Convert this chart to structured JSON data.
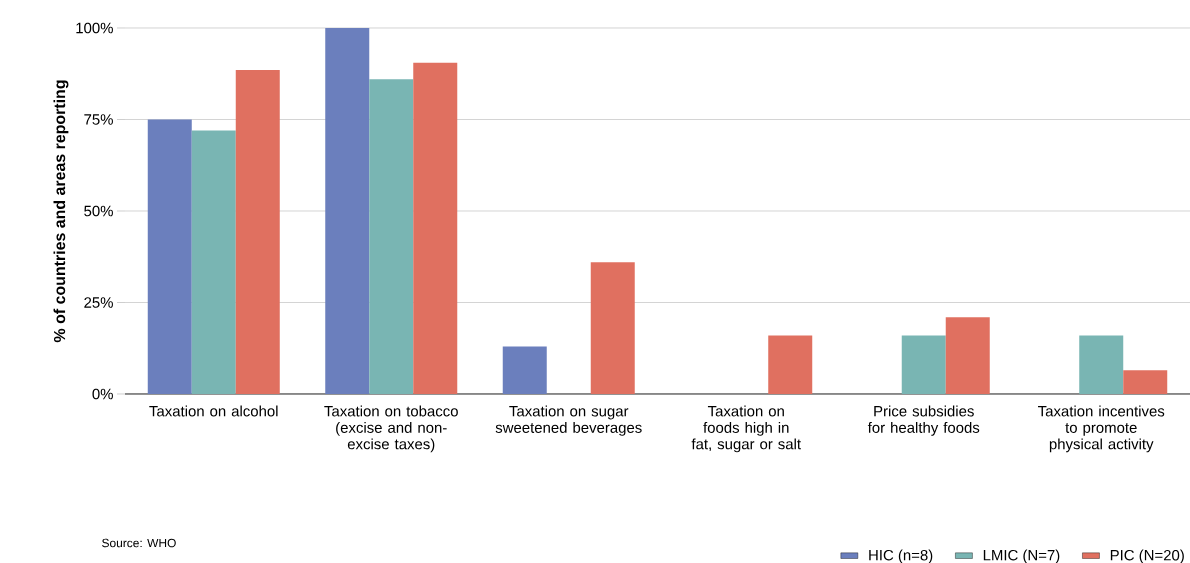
{
  "chart_data": {
    "type": "bar",
    "ylabel": "% of countries and areas reporting",
    "categories": [
      "Taxation on alcohol",
      "Taxation on tobacco (excise and non-excise taxes)",
      "Taxation on sugar sweetened beverages",
      "Taxation on foods high in fat, sugar or salt",
      "Price subsidies for healthy foods",
      "Taxation incentives to promote physical activity"
    ],
    "series": [
      {
        "name": "HIC (n=8)",
        "color": "#6b7fbd",
        "values": [
          75,
          100,
          13,
          0,
          0,
          0
        ]
      },
      {
        "name": "LMIC (N=7)",
        "color": "#79b5b3",
        "values": [
          72,
          86,
          0,
          0,
          16,
          16
        ]
      },
      {
        "name": "PIC (N=20)",
        "color": "#e07060",
        "values": [
          88.5,
          90.5,
          36,
          16,
          21,
          6.5
        ]
      }
    ],
    "ylim": [
      0,
      100
    ],
    "yticks": [
      {
        "value": 0,
        "label": "0%"
      },
      {
        "value": 25,
        "label": "25%"
      },
      {
        "value": 50,
        "label": "50%"
      },
      {
        "value": 75,
        "label": "75%"
      },
      {
        "value": 100,
        "label": "100%"
      }
    ],
    "grid": "y",
    "legend": "bottom right",
    "annotations": [
      "Source: WHO"
    ]
  }
}
